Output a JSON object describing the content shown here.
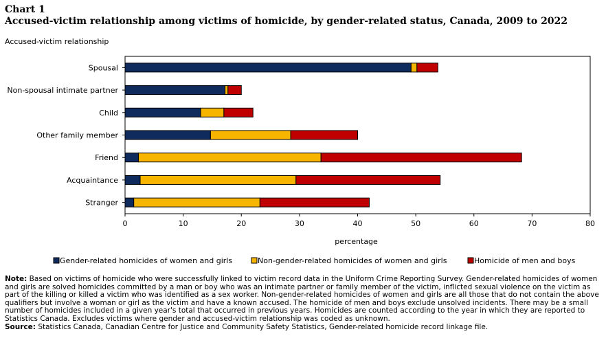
{
  "header": {
    "chart_label": "Chart 1",
    "title": "Accused-victim relationship  among victims of homicide, by gender-related status, Canada, 2009 to 2022"
  },
  "colors": {
    "gender_related": "#0f2a5c",
    "non_gender_related": "#f7b500",
    "men_boys": "#c00000"
  },
  "chart_data": {
    "type": "bar",
    "orientation": "horizontal",
    "stacked": true,
    "ylabel": "Accused-victim relationship",
    "xlabel": "percentage",
    "xlim": [
      0,
      80
    ],
    "xticks": [
      0,
      10,
      20,
      30,
      40,
      50,
      60,
      70,
      80
    ],
    "grid": false,
    "legend_position": "bottom",
    "categories": [
      "Spousal",
      "Non-spousal intimate partner",
      "Child",
      "Other family member",
      "Friend",
      "Acquaintance",
      "Stranger"
    ],
    "series": [
      {
        "name": "Gender-related homicides of women and girls",
        "values": [
          49.2,
          17.2,
          13.0,
          14.7,
          2.3,
          2.6,
          1.5
        ]
      },
      {
        "name": "Non-gender-related homicides of women and girls",
        "values": [
          1.0,
          0.5,
          4.0,
          13.8,
          31.4,
          26.8,
          21.7
        ]
      },
      {
        "name": "Homicide of men and boys",
        "values": [
          3.6,
          2.3,
          5.0,
          11.5,
          34.5,
          24.8,
          18.8
        ]
      }
    ]
  },
  "notes": {
    "note_label": "Note:",
    "note_text": " Based on victims of homicide who were successfully linked to victim record data in the Uniform Crime Reporting Survey. Gender-related homicides of women and girls are solved homicides committed by a man or boy who was an intimate partner or family member of the victim, inflicted sexual violence on the victim as part of the killing or killed a victim who was identified as a sex worker. Non-gender-related homicides of women and girls are all those that do not contain the above qualifiers but involve a woman or girl as the victim and have a known accused. The homicide of men and boys exclude unsolved incidents. There may be a small number of homicides included in a given year's total that occurred in previous years. Homicides are counted according to the year in which they are reported to Statistics Canada. Excludes victims where gender and accused-victim relationship was coded as unknown.",
    "source_label": "Source:",
    "source_text": " Statistics Canada, Canadian Centre for Justice and Community Safety Statistics, Gender-related homicide record linkage file."
  }
}
